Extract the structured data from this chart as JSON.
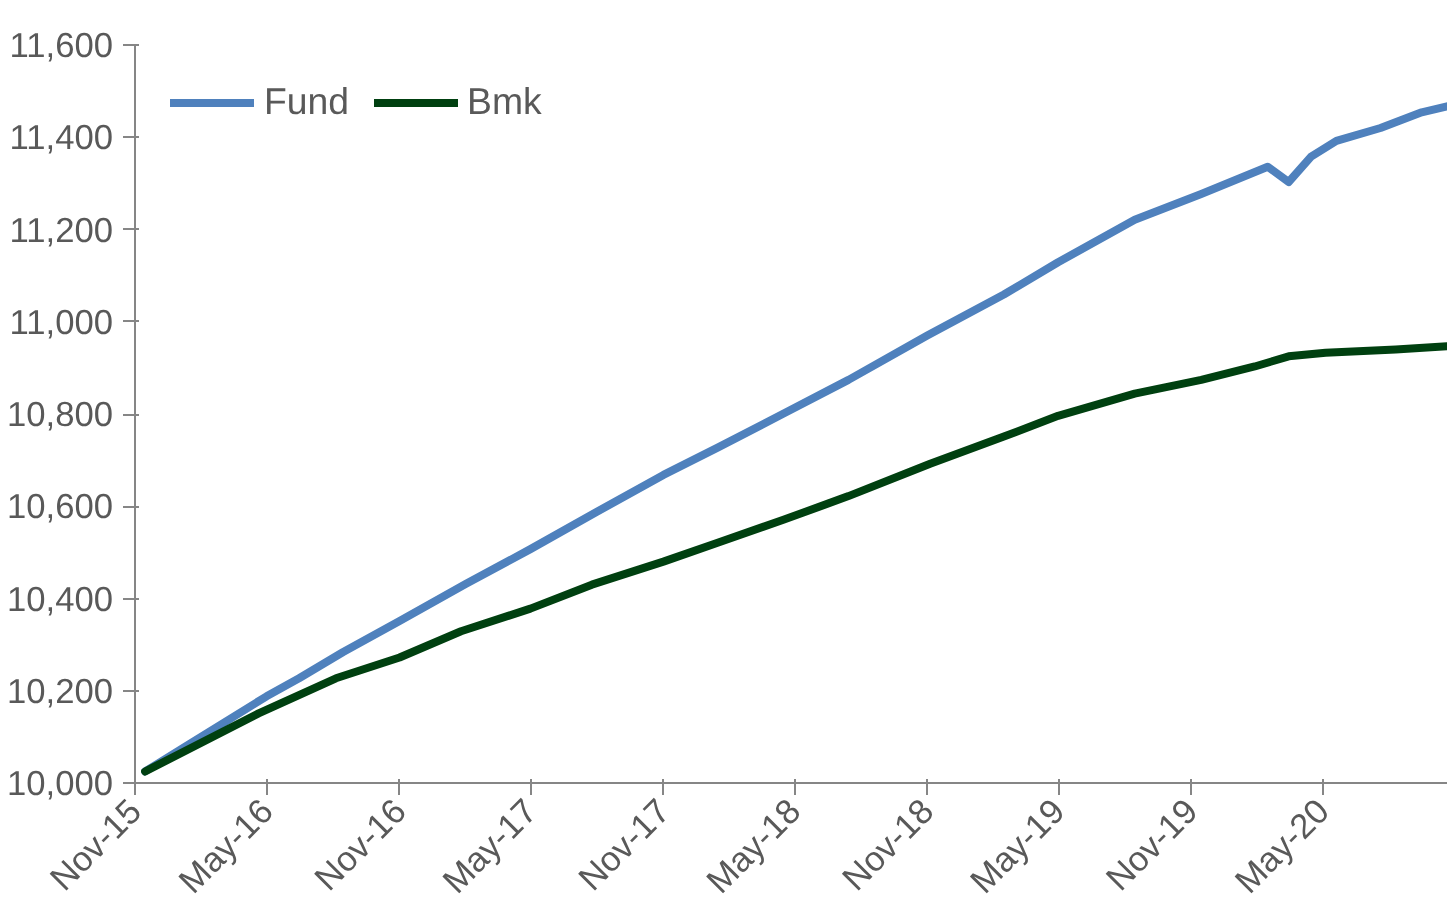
{
  "chart_data": {
    "type": "line",
    "xlim": [
      "2015-11-01",
      "2020-10-20"
    ],
    "xticks": [
      {
        "value": "2015-11-01",
        "label": "Nov-15"
      },
      {
        "value": "2016-05-01",
        "label": "May-16"
      },
      {
        "value": "2016-11-01",
        "label": "Nov-16"
      },
      {
        "value": "2017-05-01",
        "label": "May-17"
      },
      {
        "value": "2017-11-01",
        "label": "Nov-17"
      },
      {
        "value": "2018-05-01",
        "label": "May-18"
      },
      {
        "value": "2018-11-01",
        "label": "Nov-18"
      },
      {
        "value": "2019-05-01",
        "label": "May-19"
      },
      {
        "value": "2019-11-01",
        "label": "Nov-19"
      },
      {
        "value": "2020-05-01",
        "label": "May-20"
      }
    ],
    "ylim": [
      10000,
      11600
    ],
    "yticks": [
      {
        "value": 10000,
        "label": "10,000"
      },
      {
        "value": 10200,
        "label": "10,200"
      },
      {
        "value": 10400,
        "label": "10,400"
      },
      {
        "value": 10600,
        "label": "10,600"
      },
      {
        "value": 10800,
        "label": "10,800"
      },
      {
        "value": 11000,
        "label": "11,000"
      },
      {
        "value": 11200,
        "label": "11,200"
      },
      {
        "value": 11400,
        "label": "11,400"
      },
      {
        "value": 11600,
        "label": "11,600"
      }
    ],
    "grid": false,
    "legend": "top left",
    "series": [
      {
        "name": "Fund",
        "color": "#4f81bd",
        "x": [
          "2015-11-15",
          "2016-01-15",
          "2016-05-01",
          "2016-06-15",
          "2016-08-15",
          "2016-11-01",
          "2017-02-01",
          "2017-05-01",
          "2017-08-01",
          "2017-11-01",
          "2018-01-15",
          "2018-04-15",
          "2018-07-15",
          "2018-11-01",
          "2019-02-15",
          "2019-05-01",
          "2019-08-15",
          "2019-11-15",
          "2020-02-15",
          "2020-03-15",
          "2020-04-15",
          "2020-05-20",
          "2020-07-20",
          "2020-09-15",
          "2020-10-20"
        ],
        "values": [
          10025,
          10084,
          10188,
          10227,
          10284,
          10351,
          10432,
          10507,
          10588,
          10668,
          10727,
          10800,
          10874,
          10970,
          11059,
          11129,
          11221,
          11277,
          11336,
          11303,
          11358,
          11392,
          11420,
          11454,
          11467
        ]
      },
      {
        "name": "Bmk",
        "color": "#004010",
        "x": [
          "2015-11-15",
          "2016-04-20",
          "2016-08-05",
          "2016-11-01",
          "2017-01-25",
          "2017-05-01",
          "2017-07-25",
          "2017-11-01",
          "2018-01-15",
          "2018-04-15",
          "2018-07-15",
          "2018-11-05",
          "2019-02-15",
          "2019-05-01",
          "2019-08-15",
          "2019-11-15",
          "2020-01-28",
          "2020-03-15",
          "2020-05-05",
          "2020-08-10",
          "2020-10-20"
        ],
        "values": [
          10025,
          10151,
          10227,
          10272,
          10329,
          10378,
          10430,
          10480,
          10521,
          10570,
          10622,
          10692,
          10751,
          10796,
          10844,
          10874,
          10903,
          10925,
          10933,
          10940,
          10947
        ]
      }
    ]
  }
}
